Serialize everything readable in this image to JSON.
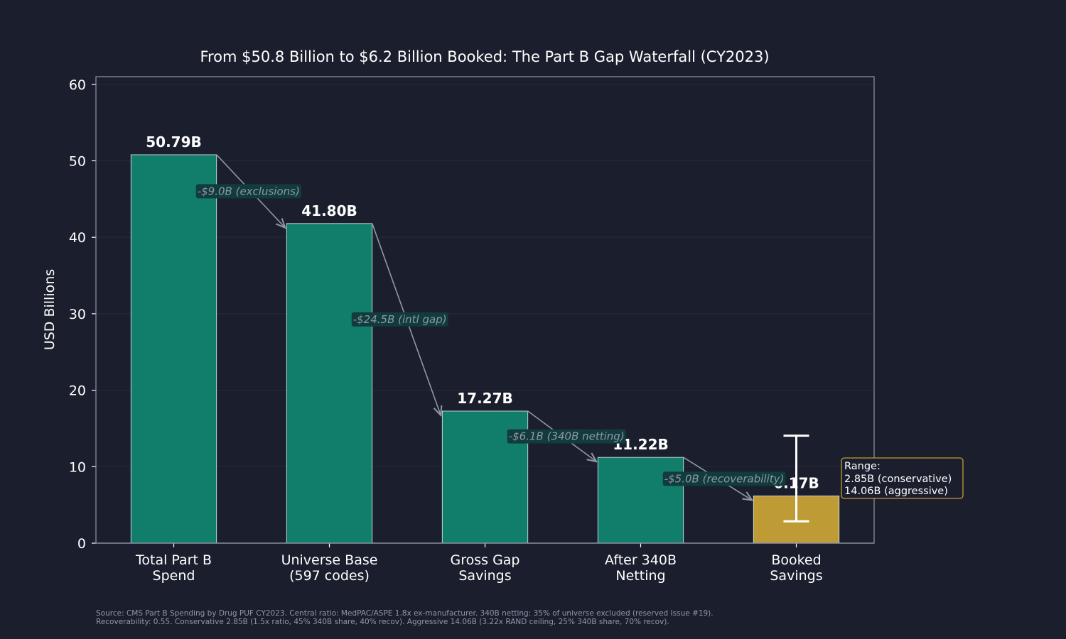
{
  "chart_data": {
    "type": "bar",
    "title": "From $50.8 Billion to $6.2 Billion Booked: The Part B Gap Waterfall (CY2023)",
    "xlabel": "",
    "ylabel": "USD Billions",
    "ylim": [
      0,
      61
    ],
    "yticks": [
      0,
      10,
      20,
      30,
      40,
      50,
      60
    ],
    "grid": true,
    "categories": [
      [
        "Total Part B",
        "Spend"
      ],
      [
        "Universe Base",
        "(597 codes)"
      ],
      [
        "Gross Gap",
        "Savings"
      ],
      [
        "After 340B",
        "Netting"
      ],
      [
        "Booked",
        "Savings"
      ]
    ],
    "values": [
      50.79,
      41.8,
      17.27,
      11.22,
      6.17
    ],
    "value_labels": [
      "50.79B",
      "41.80B",
      "17.27B",
      "11.22B",
      "6.17B"
    ],
    "steps": [
      {
        "from": 0,
        "to": 1,
        "label": "-$9.0B (exclusions)"
      },
      {
        "from": 1,
        "to": 2,
        "label": "-$24.5B (intl gap)"
      },
      {
        "from": 2,
        "to": 3,
        "label": "-$6.1B (340B netting)"
      },
      {
        "from": 3,
        "to": 4,
        "label": "-$5.0B (recoverability)"
      }
    ],
    "error_bar": {
      "category_index": 4,
      "low": 2.85,
      "high": 14.06
    },
    "range_box": [
      "Range:",
      "2.85B (conservative)",
      "14.06B (aggressive)"
    ],
    "colors": {
      "bar": "#117e6b",
      "highlight_bar": "#bf9b36",
      "background": "#1b1f2d",
      "axes_edge": "#8e97a8",
      "annotation_text": "#8e97a8",
      "annotation_box": "#123b3c",
      "range_box_edge": "#bf9b36",
      "text": "#ffffff"
    }
  },
  "footnote": [
    "Source: CMS Part B Spending by Drug PUF CY2023. Central ratio: MedPAC/ASPE 1.8x ex-manufacturer. 340B netting: 35% of universe excluded (reserved Issue #19).",
    "Recoverability: 0.55. Conservative 2.85B (1.5x ratio, 45% 340B share, 40% recov). Aggressive 14.06B (3.22x RAND ceiling, 25% 340B share, 70% recov)."
  ]
}
